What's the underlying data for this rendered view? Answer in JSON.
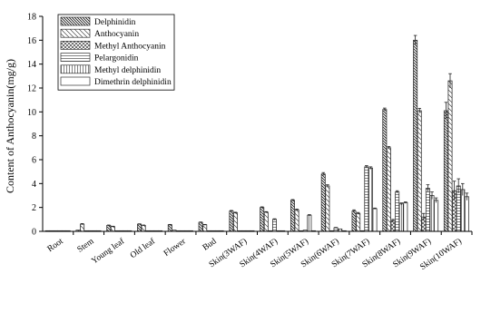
{
  "chart_data": {
    "type": "bar",
    "title": "",
    "xlabel": "",
    "ylabel": "Content of Anthocyanin(mg/g)",
    "ylim": [
      0,
      18
    ],
    "yticks": [
      0,
      2,
      4,
      6,
      8,
      10,
      12,
      14,
      16,
      18
    ],
    "legend_position": "top-left",
    "categories": [
      "Root",
      "Stem",
      "Young leaf",
      "Old leaf",
      "Flower",
      "Bud",
      "Skin(3WAF)",
      "Skin(4WAF)",
      "Skin(5WAF)",
      "Skin(6WAF)",
      "Skin(7WAF)",
      "Skin(8WAF)",
      "Skin(9WAF)",
      "Skin(10WAF)"
    ],
    "series": [
      {
        "name": "Delphinidin",
        "pattern": "dense-back-diagonal",
        "values": [
          0.05,
          0.1,
          0.5,
          0.6,
          0.55,
          0.75,
          1.7,
          2.0,
          2.6,
          4.8,
          1.7,
          10.2,
          16.0,
          10.1
        ],
        "errors": [
          0,
          0,
          0.03,
          0.03,
          0.03,
          0.03,
          0.05,
          0.05,
          0.06,
          0.12,
          0.1,
          0.12,
          0.4,
          0.7
        ]
      },
      {
        "name": "Anthocyanin",
        "pattern": "back-diagonal",
        "values": [
          0.05,
          0.6,
          0.4,
          0.5,
          0.1,
          0.55,
          1.55,
          1.6,
          1.8,
          3.8,
          1.5,
          7.0,
          10.1,
          12.6
        ],
        "errors": [
          0,
          0.05,
          0.03,
          0.03,
          0,
          0.03,
          0.05,
          0.05,
          0.06,
          0.1,
          0.08,
          0.1,
          0.2,
          0.6
        ]
      },
      {
        "name": "Methyl Anthocyanin",
        "pattern": "crosshatch",
        "values": [
          0.05,
          0.05,
          0.05,
          0.05,
          0.05,
          0.05,
          0.05,
          0.05,
          0.05,
          0.05,
          0.05,
          0.9,
          1.2,
          3.4
        ],
        "errors": [
          0,
          0,
          0,
          0,
          0,
          0,
          0,
          0,
          0,
          0,
          0,
          0.1,
          0.3,
          0.8
        ]
      },
      {
        "name": "Pelargonidin",
        "pattern": "horizontal",
        "values": [
          0.05,
          0.05,
          0.05,
          0.05,
          0.05,
          0.05,
          0.05,
          1.0,
          0.1,
          0.3,
          5.4,
          3.3,
          3.6,
          3.8
        ],
        "errors": [
          0,
          0,
          0,
          0,
          0,
          0,
          0,
          0.05,
          0,
          0.03,
          0.1,
          0.1,
          0.3,
          0.6
        ]
      },
      {
        "name": "Methyl delphinidin",
        "pattern": "vertical",
        "values": [
          0.05,
          0.05,
          0.05,
          0.05,
          0.05,
          0.05,
          0.05,
          0.05,
          1.35,
          0.2,
          5.3,
          2.3,
          3.0,
          3.5
        ],
        "errors": [
          0,
          0,
          0,
          0,
          0,
          0,
          0,
          0,
          0.05,
          0,
          0.1,
          0.08,
          0.3,
          0.5
        ]
      },
      {
        "name": "Dimethrin delphinidin",
        "pattern": "empty",
        "values": [
          0.05,
          0.05,
          0.05,
          0.05,
          0.05,
          0.05,
          0.05,
          0.05,
          0.05,
          0.05,
          1.9,
          2.4,
          2.6,
          2.9
        ],
        "errors": [
          0,
          0,
          0,
          0,
          0,
          0,
          0,
          0,
          0,
          0,
          0.05,
          0.06,
          0.2,
          0.3
        ]
      }
    ]
  }
}
